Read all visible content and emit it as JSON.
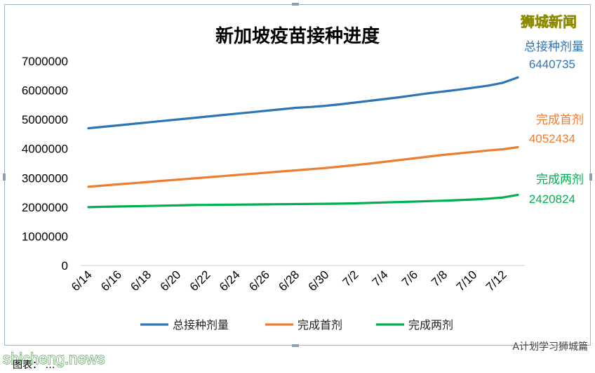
{
  "brand_logo": "狮城新闻",
  "watermark_left": "shicheng.news",
  "watermark_right": "A计划学习狮城篇",
  "caption": "图表：  …",
  "chart_data": {
    "type": "line",
    "title": "新加坡疫苗接种进度",
    "xlabel": "",
    "ylabel": "",
    "ylim": [
      0,
      7000000
    ],
    "yticks": [
      0,
      1000000,
      2000000,
      3000000,
      4000000,
      5000000,
      6000000,
      7000000
    ],
    "grid": false,
    "legend_position": "bottom",
    "x": [
      "6/14",
      "6/15",
      "6/16",
      "6/17",
      "6/18",
      "6/19",
      "6/20",
      "6/21",
      "6/22",
      "6/23",
      "6/24",
      "6/25",
      "6/26",
      "6/27",
      "6/28",
      "6/29",
      "6/30",
      "7/1",
      "7/2",
      "7/3",
      "7/4",
      "7/5",
      "7/6",
      "7/7",
      "7/8",
      "7/9",
      "7/10",
      "7/11",
      "7/12",
      "7/13"
    ],
    "x_tick_labels": [
      "6/14",
      "6/16",
      "6/18",
      "6/20",
      "6/22",
      "6/24",
      "6/26",
      "6/28",
      "6/30",
      "7/2",
      "7/4",
      "7/6",
      "7/8",
      "7/10",
      "7/12"
    ],
    "series": [
      {
        "name": "总接种剂量",
        "color": "#2e75b6",
        "end_value": "6440735",
        "values": [
          4700000,
          4750000,
          4800000,
          4850000,
          4900000,
          4950000,
          5000000,
          5050000,
          5100000,
          5150000,
          5200000,
          5250000,
          5300000,
          5350000,
          5400000,
          5430000,
          5470000,
          5520000,
          5580000,
          5640000,
          5700000,
          5760000,
          5830000,
          5900000,
          5960000,
          6020000,
          6090000,
          6160000,
          6260000,
          6440735
        ]
      },
      {
        "name": "完成首剂",
        "color": "#ed7d31",
        "end_value": "4052434",
        "values": [
          2700000,
          2740000,
          2780000,
          2820000,
          2860000,
          2900000,
          2940000,
          2980000,
          3020000,
          3060000,
          3100000,
          3140000,
          3180000,
          3220000,
          3260000,
          3300000,
          3340000,
          3390000,
          3440000,
          3490000,
          3550000,
          3610000,
          3670000,
          3730000,
          3790000,
          3840000,
          3890000,
          3940000,
          3980000,
          4052434
        ]
      },
      {
        "name": "完成两剂",
        "color": "#00b050",
        "end_value": "2420824",
        "values": [
          2000000,
          2010000,
          2020000,
          2030000,
          2040000,
          2050000,
          2060000,
          2070000,
          2075000,
          2080000,
          2085000,
          2090000,
          2095000,
          2100000,
          2105000,
          2110000,
          2115000,
          2120000,
          2130000,
          2145000,
          2160000,
          2175000,
          2190000,
          2205000,
          2220000,
          2240000,
          2260000,
          2290000,
          2330000,
          2420824
        ]
      }
    ]
  }
}
